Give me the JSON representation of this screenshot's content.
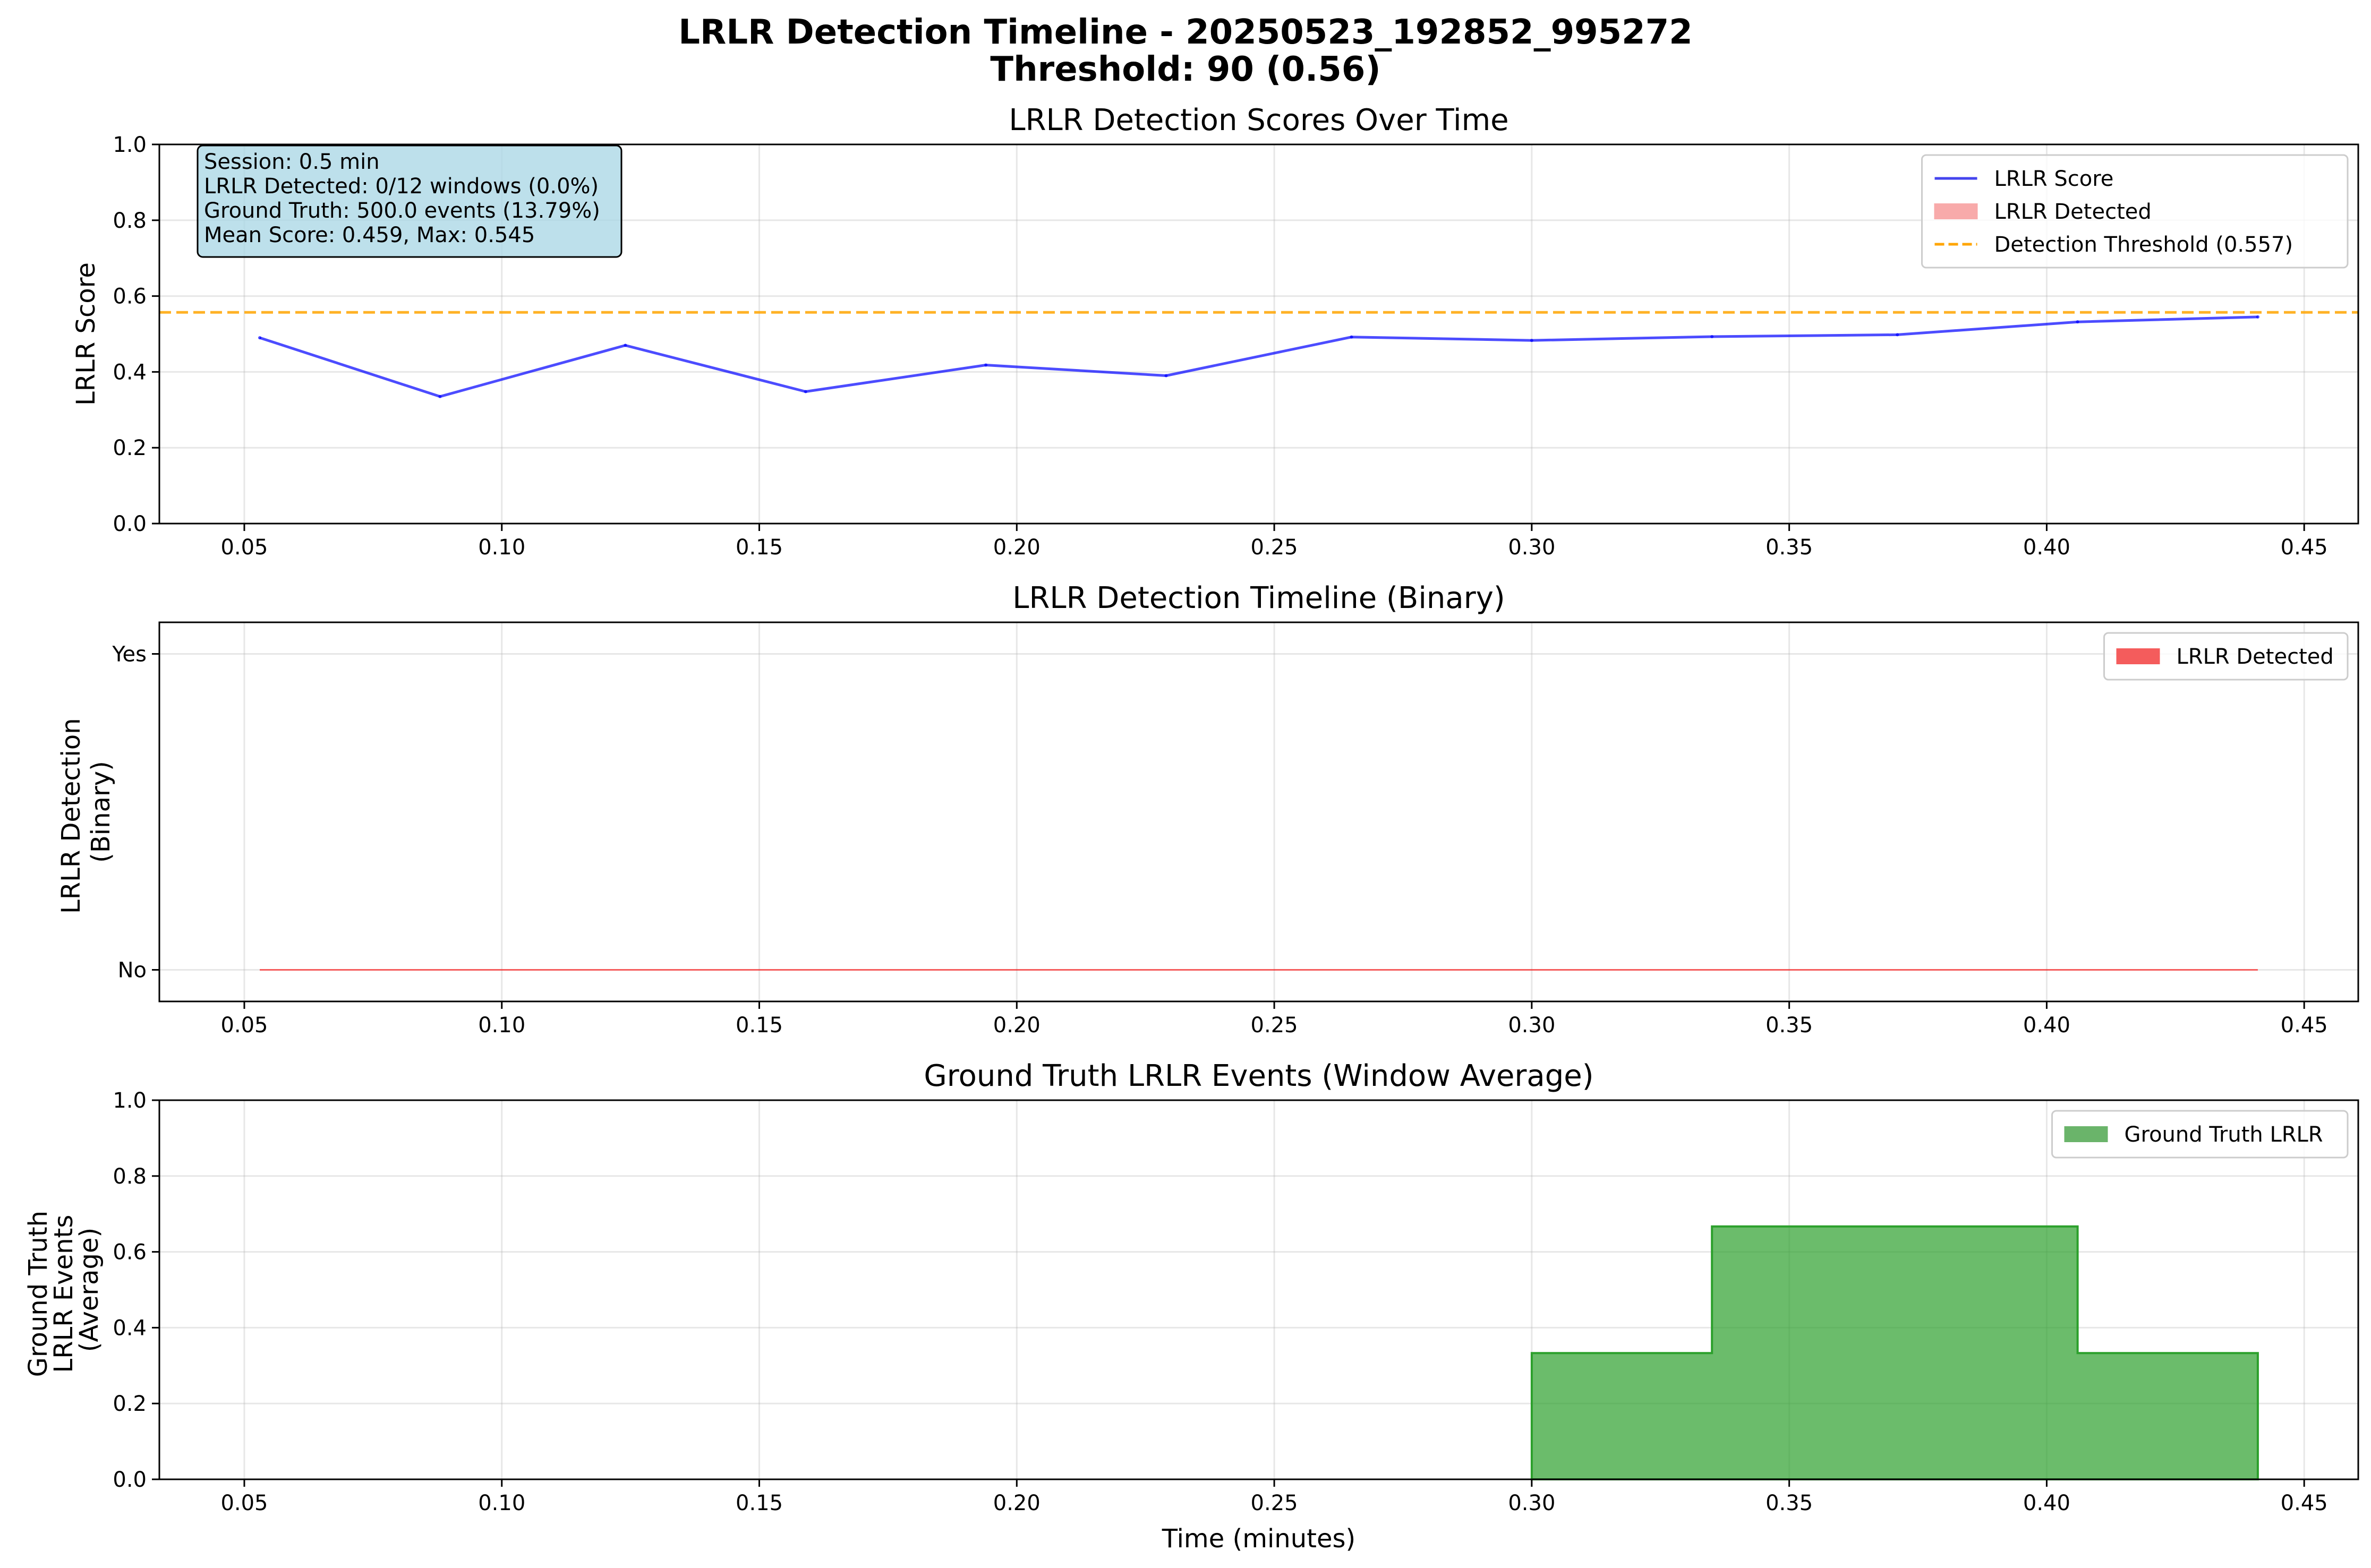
{
  "figure": {
    "title_line1": "LRLR Detection Timeline - 20250523_192852_995272",
    "title_line2": "Threshold: 90 (0.56)"
  },
  "chart_data": [
    {
      "type": "line",
      "title": "LRLR Detection Scores Over Time",
      "xlabel": "",
      "ylabel": "LRLR Score",
      "xlim": [
        0.0335,
        0.4605
      ],
      "ylim": [
        0,
        1
      ],
      "xticks": [
        "0.05",
        "0.10",
        "0.15",
        "0.20",
        "0.25",
        "0.30",
        "0.35",
        "0.40",
        "0.45"
      ],
      "xtick_values": [
        0.05,
        0.1,
        0.15,
        0.2,
        0.25,
        0.3,
        0.35,
        0.4,
        0.45
      ],
      "yticks": [
        "0.0",
        "0.2",
        "0.4",
        "0.6",
        "0.8",
        "1.0"
      ],
      "ytick_values": [
        0,
        0.2,
        0.4,
        0.6,
        0.8,
        1.0
      ],
      "grid": true,
      "legend_position": "top-right",
      "series": [
        {
          "name": "LRLR Score",
          "color": "#0000ff",
          "x": [
            0.053,
            0.088,
            0.124,
            0.159,
            0.194,
            0.229,
            0.265,
            0.3,
            0.335,
            0.371,
            0.406,
            0.441
          ],
          "y": [
            0.49,
            0.335,
            0.47,
            0.348,
            0.418,
            0.39,
            0.492,
            0.483,
            0.493,
            0.498,
            0.532,
            0.545
          ]
        }
      ],
      "legend": [
        {
          "label": "LRLR Score",
          "kind": "line",
          "color": "#4444ee"
        },
        {
          "label": "LRLR Detected",
          "kind": "patch",
          "color": "#f8aaaa"
        },
        {
          "label": "Detection Threshold (0.557)",
          "kind": "dashed",
          "color": "#ffa500"
        }
      ],
      "threshold": 0.557,
      "info_box": [
        "Session: 0.5 min",
        "LRLR Detected: 0/12 windows (0.0%)",
        "Ground Truth: 500.0 events (13.79%)",
        "Mean Score: 0.459, Max: 0.545"
      ]
    },
    {
      "type": "area",
      "title": "LRLR Detection Timeline (Binary)",
      "xlabel": "",
      "ylabel_line1": "LRLR Detection",
      "ylabel_line2": "(Binary)",
      "xlim": [
        0.0335,
        0.4605
      ],
      "ylim": [
        -0.1,
        1.1
      ],
      "xticks": [
        "0.05",
        "0.10",
        "0.15",
        "0.20",
        "0.25",
        "0.30",
        "0.35",
        "0.40",
        "0.45"
      ],
      "xtick_values": [
        0.05,
        0.1,
        0.15,
        0.2,
        0.25,
        0.3,
        0.35,
        0.4,
        0.45
      ],
      "yticks": [
        "No",
        "Yes"
      ],
      "ytick_values": [
        0,
        1
      ],
      "grid": true,
      "legend_position": "top-right",
      "series": [
        {
          "name": "LRLR Detected",
          "color": "#ff0000",
          "x": [
            0.053,
            0.088,
            0.124,
            0.159,
            0.194,
            0.229,
            0.265,
            0.3,
            0.335,
            0.371,
            0.406,
            0.441
          ],
          "y": [
            0,
            0,
            0,
            0,
            0,
            0,
            0,
            0,
            0,
            0,
            0,
            0
          ]
        }
      ],
      "legend": [
        {
          "label": "LRLR Detected",
          "kind": "patch",
          "color": "#f45c5c"
        }
      ]
    },
    {
      "type": "area",
      "title": "Ground Truth LRLR Events (Window Average)",
      "xlabel": "Time (minutes)",
      "ylabel_line1": "Ground Truth",
      "ylabel_line2": "LRLR Events",
      "ylabel_line3": "(Average)",
      "xlim": [
        0.0335,
        0.4605
      ],
      "ylim": [
        0,
        1
      ],
      "xticks": [
        "0.05",
        "0.10",
        "0.15",
        "0.20",
        "0.25",
        "0.30",
        "0.35",
        "0.40",
        "0.45"
      ],
      "xtick_values": [
        0.05,
        0.1,
        0.15,
        0.2,
        0.25,
        0.3,
        0.35,
        0.4,
        0.45
      ],
      "yticks": [
        "0.0",
        "0.2",
        "0.4",
        "0.6",
        "0.8",
        "1.0"
      ],
      "ytick_values": [
        0,
        0.2,
        0.4,
        0.6,
        0.8,
        1.0
      ],
      "grid": true,
      "legend_position": "top-right",
      "series": [
        {
          "name": "Ground Truth LRLR",
          "color": "#2ca02c",
          "x": [
            0.3,
            0.335,
            0.371,
            0.406,
            0.441
          ],
          "y": [
            0.333,
            0.667,
            0.667,
            0.333,
            0.333
          ]
        }
      ],
      "legend": [
        {
          "label": "Ground Truth LRLR",
          "kind": "patch",
          "color": "#6ab46a"
        }
      ]
    }
  ]
}
